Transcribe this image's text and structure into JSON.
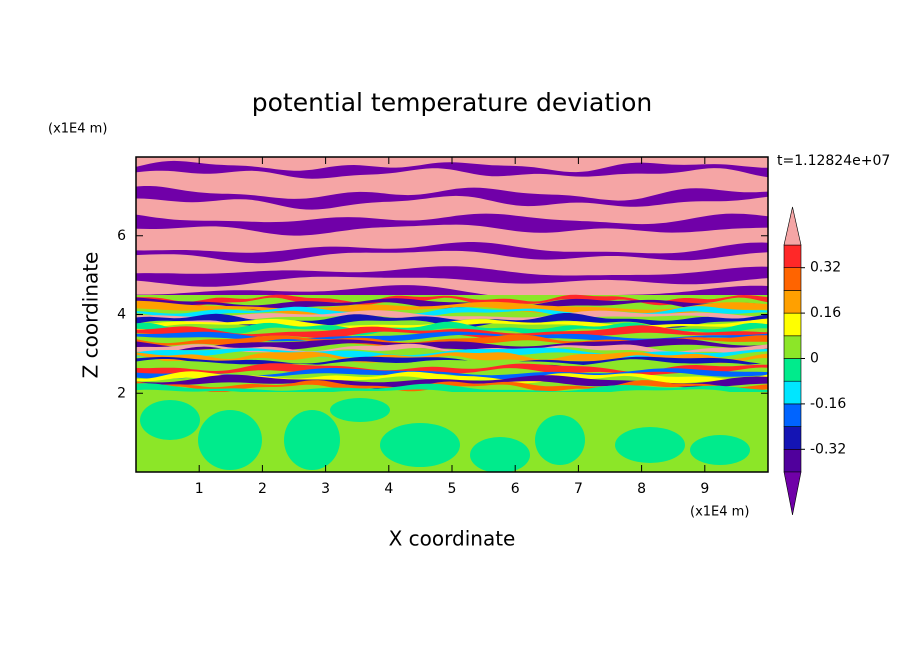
{
  "chart_data": {
    "type": "contour",
    "title": "potential temperature deviation",
    "xlabel": "X coordinate",
    "ylabel": "Z coordinate",
    "x_unit": "(x1E4 m)",
    "y_unit": "(x1E4 m)",
    "time_label": "t=1.12824e+07",
    "xlim": [
      0,
      10
    ],
    "ylim": [
      0,
      8
    ],
    "xticks": [
      1,
      2,
      3,
      4,
      5,
      6,
      7,
      8,
      9
    ],
    "yticks": [
      2,
      4,
      6
    ],
    "colorbar": {
      "levels": [
        -0.4,
        -0.32,
        -0.24,
        -0.16,
        -0.08,
        0,
        0.08,
        0.16,
        0.24,
        0.32,
        0.4
      ],
      "colors": [
        "#50009c",
        "#1414b4",
        "#0064ff",
        "#00e6ff",
        "#00eb8c",
        "#8ce628",
        "#ffff00",
        "#ffa000",
        "#ff6400",
        "#ff2828"
      ],
      "under_color": "#7000a8",
      "over_color": "#f5a5a5",
      "ticks": [
        -0.32,
        -0.16,
        0,
        0.16,
        0.32
      ]
    }
  }
}
